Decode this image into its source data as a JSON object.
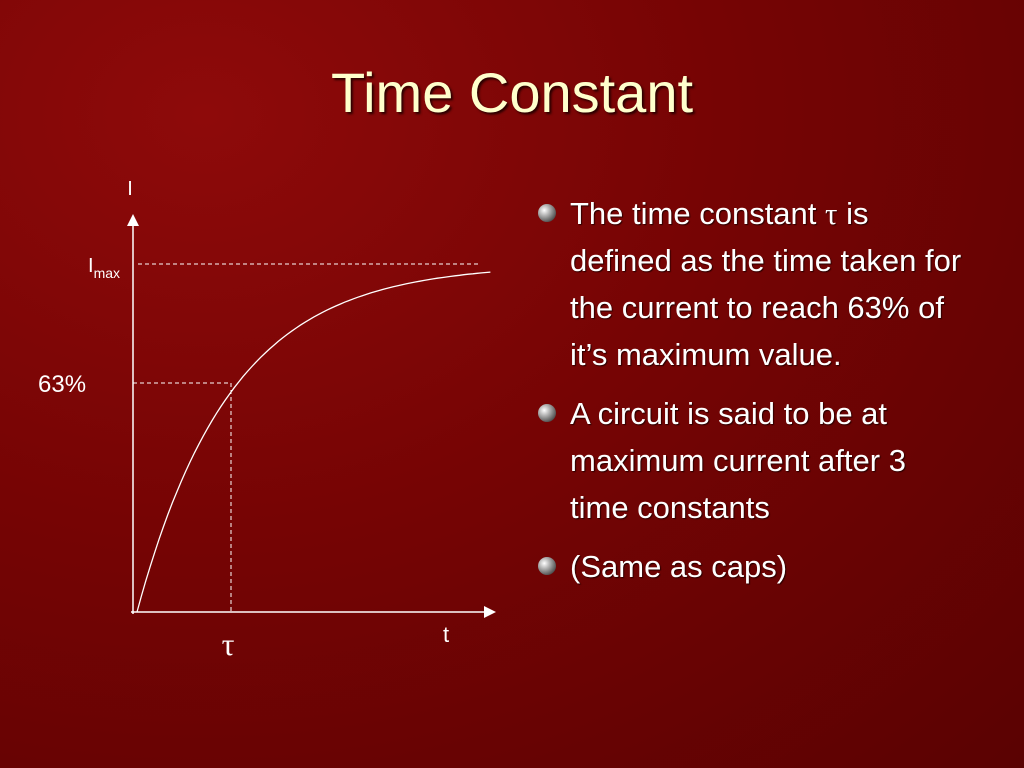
{
  "title": "Time Constant",
  "diagram": {
    "y_axis_label": "I",
    "imax_label": "I",
    "imax_subscript": "max",
    "percent_label": "63%",
    "tau_label": "τ",
    "x_axis_label": "t"
  },
  "bullets": [
    [
      "The time constant ",
      "τ",
      " is defined as the time taken for the current to reach 63% of it’s maximum value."
    ],
    [
      "A circuit is said to be at maximum current after 3 time constants"
    ],
    [
      "(Same as caps)"
    ]
  ]
}
